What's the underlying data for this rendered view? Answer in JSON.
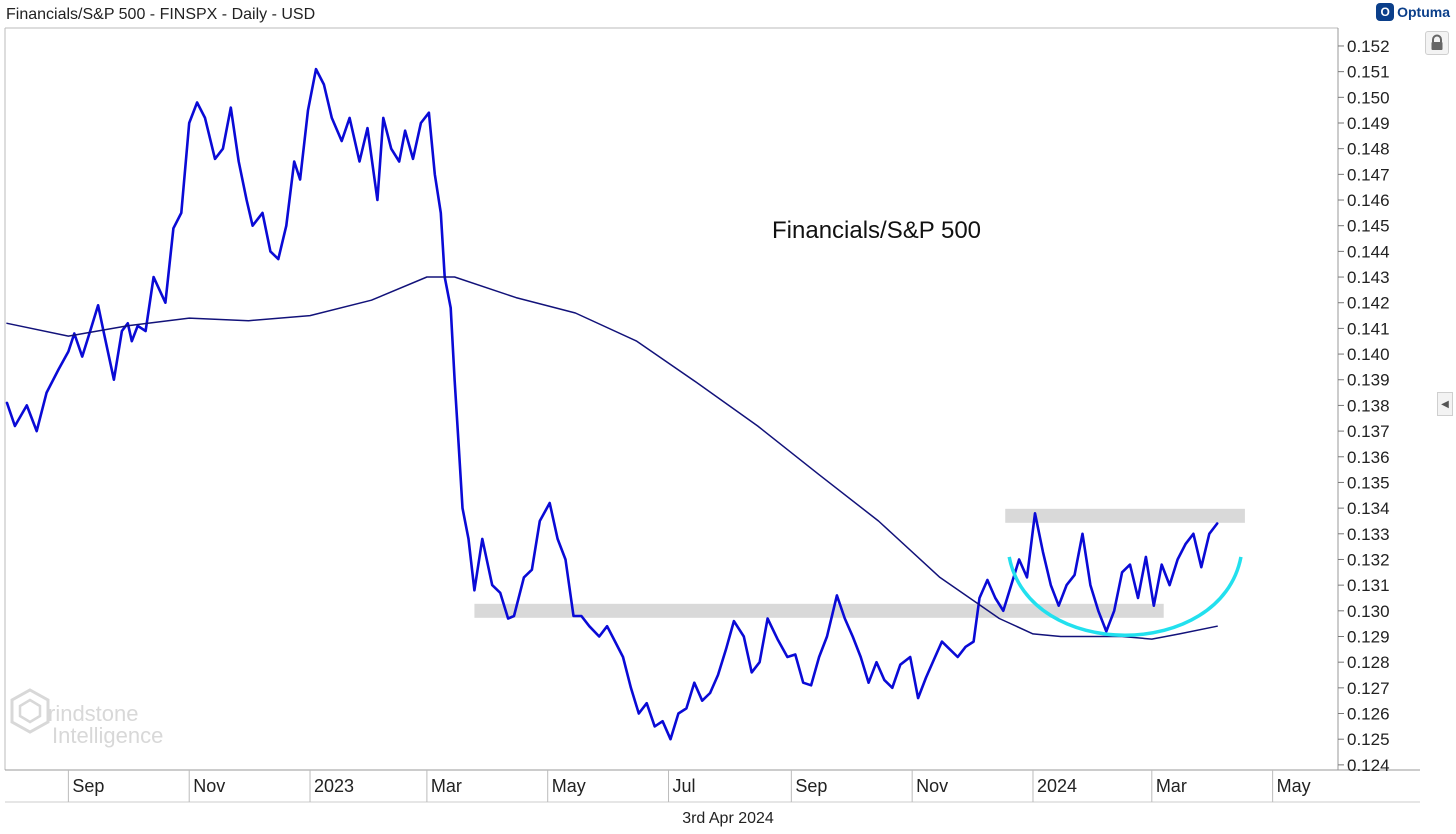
{
  "header": {
    "title": "Financials/S&P 500 - FINSPX - Daily - USD",
    "brand": "Optuma"
  },
  "footer": {
    "date": "3rd Apr 2024"
  },
  "watermark": {
    "line1": "rindstone",
    "line2": "Intelligence"
  },
  "colors": {
    "price": "#0a0ad6",
    "ma": "#12127a",
    "arc": "#22e0ee",
    "band": "#d9d9d9",
    "axis": "#999999"
  },
  "chart_data": {
    "type": "line",
    "title": "",
    "annotation": "Financials/S&P 500",
    "xlabel": "",
    "ylabel": "",
    "ylim": [
      0.1238,
      0.1527
    ],
    "y_ticks": [
      "0.152",
      "0.151",
      "0.150",
      "0.149",
      "0.148",
      "0.147",
      "0.146",
      "0.145",
      "0.144",
      "0.143",
      "0.142",
      "0.141",
      "0.140",
      "0.139",
      "0.138",
      "0.137",
      "0.136",
      "0.135",
      "0.134",
      "0.133",
      "0.132",
      "0.131",
      "0.130",
      "0.129",
      "0.128",
      "0.127",
      "0.126",
      "0.125",
      "0.124"
    ],
    "x_ticks": [
      {
        "label": "Sep",
        "date": "2022-09-01"
      },
      {
        "label": "Nov",
        "date": "2022-11-01"
      },
      {
        "label": "2023",
        "date": "2023-01-01"
      },
      {
        "label": "Mar",
        "date": "2023-03-01"
      },
      {
        "label": "May",
        "date": "2023-05-01"
      },
      {
        "label": "Jul",
        "date": "2023-07-01"
      },
      {
        "label": "Sep",
        "date": "2023-09-01"
      },
      {
        "label": "Nov",
        "date": "2023-11-01"
      },
      {
        "label": "2024",
        "date": "2024-01-01"
      },
      {
        "label": "Mar",
        "date": "2024-03-01"
      },
      {
        "label": "May",
        "date": "2024-05-01"
      }
    ],
    "xlim": [
      "2022-07-31",
      "2024-06-03"
    ],
    "grid": false,
    "series": [
      {
        "role": "price",
        "x": [
          "2022-08-01",
          "2022-08-05",
          "2022-08-11",
          "2022-08-16",
          "2022-08-21",
          "2022-08-27",
          "2022-09-01",
          "2022-09-04",
          "2022-09-08",
          "2022-09-12",
          "2022-09-16",
          "2022-09-19",
          "2022-09-24",
          "2022-09-28",
          "2022-10-01",
          "2022-10-03",
          "2022-10-06",
          "2022-10-10",
          "2022-10-14",
          "2022-10-17",
          "2022-10-20",
          "2022-10-24",
          "2022-10-28",
          "2022-11-01",
          "2022-11-05",
          "2022-11-09",
          "2022-11-14",
          "2022-11-18",
          "2022-11-22",
          "2022-11-26",
          "2022-11-30",
          "2022-12-03",
          "2022-12-08",
          "2022-12-12",
          "2022-12-16",
          "2022-12-20",
          "2022-12-24",
          "2022-12-27",
          "2022-12-31",
          "2023-01-04",
          "2023-01-08",
          "2023-01-12",
          "2023-01-17",
          "2023-01-21",
          "2023-01-26",
          "2023-01-30",
          "2023-02-04",
          "2023-02-07",
          "2023-02-11",
          "2023-02-15",
          "2023-02-18",
          "2023-02-22",
          "2023-02-26",
          "2023-03-02",
          "2023-03-05",
          "2023-03-08",
          "2023-03-10",
          "2023-03-13",
          "2023-03-15",
          "2023-03-17",
          "2023-03-19",
          "2023-03-22",
          "2023-03-25",
          "2023-03-29",
          "2023-04-03",
          "2023-04-07",
          "2023-04-11",
          "2023-04-14",
          "2023-04-19",
          "2023-04-23",
          "2023-04-27",
          "2023-05-02",
          "2023-05-06",
          "2023-05-10",
          "2023-05-14",
          "2023-05-18",
          "2023-05-22",
          "2023-05-27",
          "2023-05-31",
          "2023-06-04",
          "2023-06-08",
          "2023-06-12",
          "2023-06-16",
          "2023-06-20",
          "2023-06-24",
          "2023-06-28",
          "2023-07-02",
          "2023-07-06",
          "2023-07-10",
          "2023-07-14",
          "2023-07-18",
          "2023-07-22",
          "2023-07-26",
          "2023-07-30",
          "2023-08-03",
          "2023-08-08",
          "2023-08-12",
          "2023-08-16",
          "2023-08-20",
          "2023-08-25",
          "2023-08-30",
          "2023-09-03",
          "2023-09-07",
          "2023-09-11",
          "2023-09-15",
          "2023-09-19",
          "2023-09-24",
          "2023-09-28",
          "2023-10-02",
          "2023-10-06",
          "2023-10-10",
          "2023-10-14",
          "2023-10-18",
          "2023-10-22",
          "2023-10-26",
          "2023-10-31",
          "2023-11-04",
          "2023-11-08",
          "2023-11-12",
          "2023-11-16",
          "2023-11-20",
          "2023-11-24",
          "2023-11-28",
          "2023-12-02",
          "2023-12-05",
          "2023-12-09",
          "2023-12-13",
          "2023-12-17",
          "2023-12-21",
          "2023-12-25",
          "2023-12-29",
          "2024-01-02",
          "2024-01-06",
          "2024-01-10",
          "2024-01-14",
          "2024-01-18",
          "2024-01-22",
          "2024-01-26",
          "2024-01-30",
          "2024-02-03",
          "2024-02-07",
          "2024-02-11",
          "2024-02-15",
          "2024-02-19",
          "2024-02-23",
          "2024-02-27",
          "2024-03-02",
          "2024-03-06",
          "2024-03-10",
          "2024-03-14",
          "2024-03-18",
          "2024-03-22",
          "2024-03-26",
          "2024-03-30",
          "2024-04-03"
        ],
        "y": [
          0.1381,
          0.1372,
          0.138,
          0.137,
          0.1385,
          0.1394,
          0.1401,
          0.1408,
          0.1399,
          0.1409,
          0.1419,
          0.1408,
          0.139,
          0.1409,
          0.1412,
          0.1405,
          0.1411,
          0.1409,
          0.143,
          0.1425,
          0.142,
          0.1449,
          0.1455,
          0.149,
          0.1498,
          0.1492,
          0.1476,
          0.148,
          0.1496,
          0.1475,
          0.146,
          0.145,
          0.1455,
          0.144,
          0.1437,
          0.145,
          0.1475,
          0.1468,
          0.1495,
          0.1511,
          0.1505,
          0.1492,
          0.1483,
          0.1492,
          0.1475,
          0.1488,
          0.146,
          0.1492,
          0.148,
          0.1475,
          0.1487,
          0.1476,
          0.149,
          0.1494,
          0.147,
          0.1455,
          0.143,
          0.1418,
          0.139,
          0.1365,
          0.134,
          0.1328,
          0.1308,
          0.1328,
          0.131,
          0.1307,
          0.1297,
          0.1298,
          0.1313,
          0.1316,
          0.1335,
          0.1342,
          0.1328,
          0.132,
          0.1298,
          0.1298,
          0.1294,
          0.129,
          0.1294,
          0.1288,
          0.1282,
          0.127,
          0.126,
          0.1264,
          0.1255,
          0.1257,
          0.125,
          0.126,
          0.1262,
          0.1272,
          0.1265,
          0.1268,
          0.1275,
          0.1285,
          0.1296,
          0.129,
          0.1276,
          0.128,
          0.1297,
          0.1289,
          0.1282,
          0.1283,
          0.1272,
          0.1271,
          0.1282,
          0.129,
          0.1306,
          0.1297,
          0.129,
          0.1282,
          0.1272,
          0.128,
          0.1273,
          0.127,
          0.1279,
          0.1282,
          0.1266,
          0.1274,
          0.1281,
          0.1288,
          0.1285,
          0.1282,
          0.1286,
          0.1288,
          0.1305,
          0.1312,
          0.1305,
          0.13,
          0.131,
          0.132,
          0.1313,
          0.1338,
          0.1323,
          0.131,
          0.1302,
          0.131,
          0.1314,
          0.133,
          0.131,
          0.13,
          0.1292,
          0.13,
          0.1315,
          0.1318,
          0.1305,
          0.1321,
          0.1302,
          0.1318,
          0.131,
          0.132,
          0.1326,
          0.133,
          0.1317,
          0.133,
          0.1334
        ]
      },
      {
        "role": "moving_average",
        "x": [
          "2022-08-01",
          "2022-09-01",
          "2022-10-01",
          "2022-11-01",
          "2022-12-01",
          "2023-01-01",
          "2023-02-01",
          "2023-03-01",
          "2023-03-15",
          "2023-04-15",
          "2023-05-15",
          "2023-06-15",
          "2023-07-15",
          "2023-08-15",
          "2023-09-15",
          "2023-10-15",
          "2023-11-15",
          "2023-12-15",
          "2024-01-01",
          "2024-01-15",
          "2024-02-01",
          "2024-02-15",
          "2024-03-01",
          "2024-03-15",
          "2024-04-03"
        ],
        "y": [
          0.1412,
          0.1407,
          0.1411,
          0.1414,
          0.1413,
          0.1415,
          0.1421,
          0.143,
          0.143,
          0.1422,
          0.1416,
          0.1405,
          0.1389,
          0.1372,
          0.1353,
          0.1335,
          0.1313,
          0.1297,
          0.1291,
          0.129,
          0.129,
          0.129,
          0.1289,
          0.1291,
          0.1294
        ]
      }
    ],
    "bands": [
      {
        "from": "2023-03-25",
        "to": "2024-03-07",
        "y": 0.13
      },
      {
        "from": "2023-12-18",
        "to": "2024-04-17",
        "y": 0.1337
      }
    ],
    "rounding_arc": {
      "from": "2023-12-20",
      "to": "2024-04-15",
      "top": 0.1321,
      "bottom": 0.1292
    }
  }
}
